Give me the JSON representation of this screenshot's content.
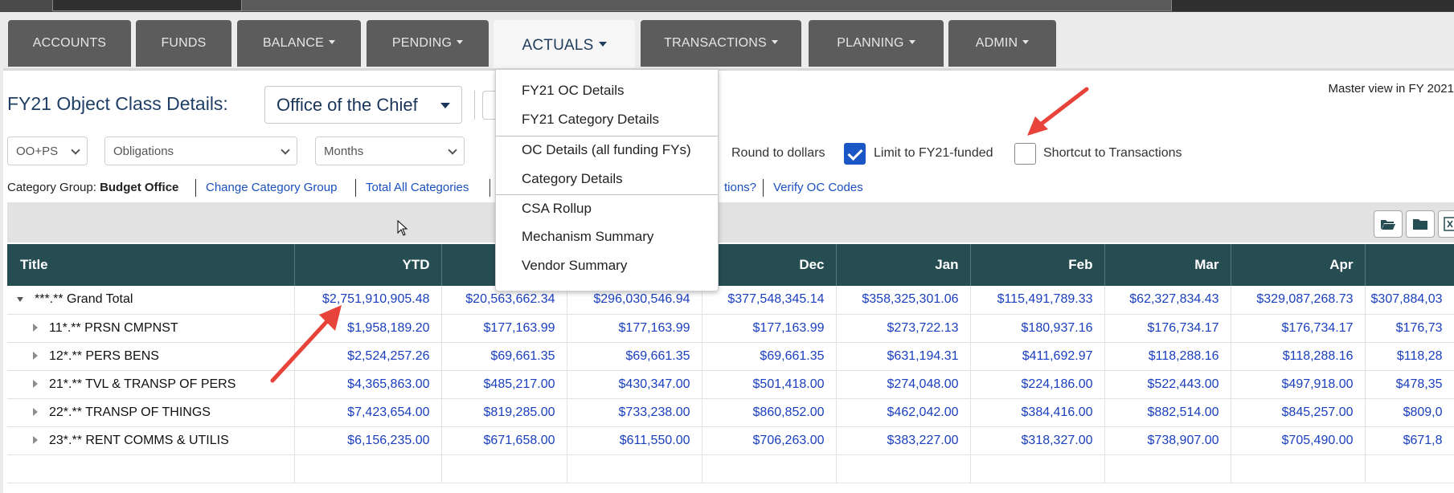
{
  "nav": {
    "tabs": [
      {
        "label": "ACCOUNTS",
        "dropdown": false
      },
      {
        "label": "FUNDS",
        "dropdown": false
      },
      {
        "label": "BALANCE",
        "dropdown": true
      },
      {
        "label": "PENDING",
        "dropdown": true
      },
      {
        "label": "ACTUALS",
        "dropdown": true,
        "active": true
      },
      {
        "label": "TRANSACTIONS",
        "dropdown": true
      },
      {
        "label": "PLANNING",
        "dropdown": true
      },
      {
        "label": "ADMIN",
        "dropdown": true
      }
    ]
  },
  "actuals_menu": {
    "items": [
      "FY21 OC Details",
      "FY21 Category Details",
      "OC Details (all funding FYs)",
      "Category Details",
      "CSA Rollup",
      "Mechanism Summary",
      "Vendor Summary"
    ]
  },
  "header": {
    "title": "FY21 Object Class Details:",
    "office": "Office of the Chief",
    "master_view": "Master view in FY 2021"
  },
  "filters": {
    "oo_ps": "OO+PS",
    "obligations": "Obligations",
    "months": "Months",
    "round_label": "Round to dollars",
    "limit_label": "Limit to FY21-funded",
    "limit_checked": true,
    "shortcut_label": "Shortcut to Transactions",
    "shortcut_checked": false
  },
  "category": {
    "prefix": "Category Group: ",
    "group": "Budget Office",
    "links": {
      "change": "Change Category Group",
      "total": "Total All Categories",
      "partial": "tions?",
      "verify": "Verify OC Codes"
    }
  },
  "table": {
    "columns": [
      "Title",
      "YTD",
      "",
      "",
      "Dec",
      "Jan",
      "Feb",
      "Mar",
      "Apr",
      ""
    ],
    "rows": [
      {
        "title": "***.** Grand Total",
        "expanded": true,
        "values": [
          "$2,751,910,905.48",
          "$20,563,662.34",
          "$296,030,546.94",
          "$377,548,345.14",
          "$358,325,301.06",
          "$115,491,789.33",
          "$62,327,834.43",
          "$329,087,268.73",
          "$307,884,03"
        ]
      },
      {
        "title": "11*.** PRSN CMPNST",
        "expanded": false,
        "values": [
          "$1,958,189.20",
          "$177,163.99",
          "$177,163.99",
          "$177,163.99",
          "$273,722.13",
          "$180,937.16",
          "$176,734.17",
          "$176,734.17",
          "$176,73"
        ]
      },
      {
        "title": "12*.** PERS BENS",
        "expanded": false,
        "values": [
          "$2,524,257.26",
          "$69,661.35",
          "$69,661.35",
          "$69,661.35",
          "$631,194.31",
          "$411,692.97",
          "$118,288.16",
          "$118,288.16",
          "$118,28"
        ]
      },
      {
        "title": "21*.** TVL & TRANSP OF PERS",
        "expanded": false,
        "values": [
          "$4,365,863.00",
          "$485,217.00",
          "$430,347.00",
          "$501,418.00",
          "$274,048.00",
          "$224,186.00",
          "$522,443.00",
          "$497,918.00",
          "$478,35"
        ]
      },
      {
        "title": "22*.** TRANSP OF THINGS",
        "expanded": false,
        "values": [
          "$7,423,654.00",
          "$819,285.00",
          "$733,238.00",
          "$860,852.00",
          "$462,042.00",
          "$384,416.00",
          "$882,514.00",
          "$845,257.00",
          "$809,0"
        ]
      },
      {
        "title": "23*.** RENT COMMS & UTILIS",
        "expanded": false,
        "values": [
          "$6,156,235.00",
          "$671,658.00",
          "$611,550.00",
          "$706,263.00",
          "$383,227.00",
          "$318,327.00",
          "$738,907.00",
          "$705,490.00",
          "$671,8"
        ]
      },
      {
        "title": "",
        "expanded": false,
        "values": [
          "",
          "",
          "",
          "",
          "",
          "",
          "",
          "",
          ""
        ]
      }
    ]
  },
  "icons": {
    "toolbar": [
      "folder-open-icon",
      "folder-icon",
      "excel-icon"
    ],
    "annotation_color": "#e8433a"
  }
}
